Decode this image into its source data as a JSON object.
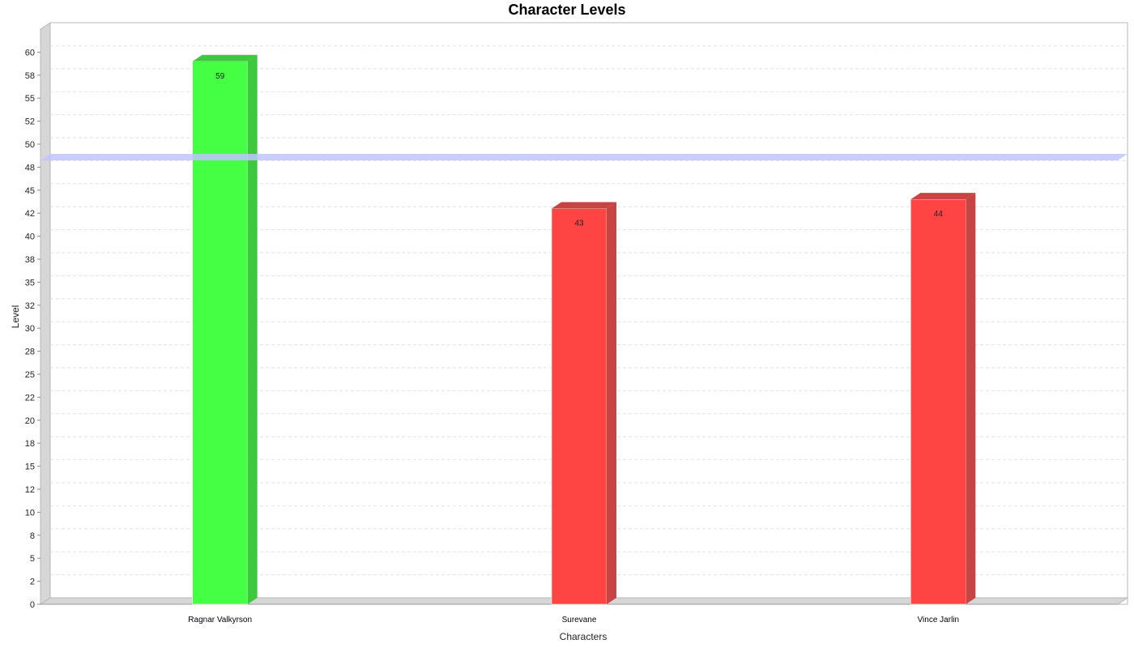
{
  "chart_data": {
    "type": "bar",
    "title": "Character Levels",
    "xlabel": "Characters",
    "ylabel": "Level",
    "categories": [
      "Ragnar Valkyrson",
      "Surevane",
      "Vince Jarlin"
    ],
    "values": [
      59,
      43,
      44
    ],
    "value_labels": [
      "59",
      "43",
      "44"
    ],
    "bar_colors": [
      "#44ff44",
      "#ff4444",
      "#ff4444"
    ],
    "bar_side_colors": [
      "#3ec83e",
      "#c84343",
      "#c84343"
    ],
    "reference_line": {
      "value": 48.5,
      "color": "#c0c4ff"
    },
    "ylim": [
      0,
      62.5
    ],
    "y_ticks": [
      0,
      2.5,
      5,
      7.5,
      10,
      12.5,
      15,
      17.5,
      20,
      22.5,
      25,
      27.5,
      30,
      32.5,
      35,
      37.5,
      40,
      42.5,
      45,
      47.5,
      50,
      52.5,
      55,
      57.5,
      60
    ],
    "y_tick_labels": [
      "0",
      "2",
      "5",
      "8",
      "10",
      "12",
      "15",
      "18",
      "20",
      "22",
      "25",
      "28",
      "30",
      "32",
      "35",
      "38",
      "40",
      "42",
      "45",
      "48",
      "50",
      "52",
      "55",
      "58",
      "60"
    ],
    "grid": true,
    "legend": "none"
  }
}
